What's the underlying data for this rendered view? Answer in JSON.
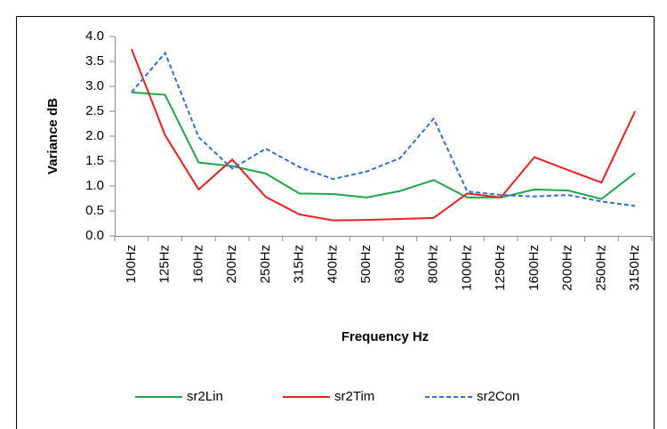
{
  "chart_data": {
    "type": "line",
    "x_label": "Frequency Hz",
    "y_label": "Variance dB",
    "categories": [
      "100Hz",
      "125Hz",
      "160Hz",
      "200Hz",
      "250Hz",
      "315Hz",
      "400Hz",
      "500Hz",
      "630Hz",
      "800Hz",
      "1000Hz",
      "1250Hz",
      "1600Hz",
      "2000Hz",
      "2500Hz",
      "3150Hz"
    ],
    "series": [
      {
        "name": "sr2Lin",
        "color": "#1fa64a",
        "dashed": false,
        "values": [
          2.88,
          2.83,
          1.47,
          1.4,
          1.25,
          0.85,
          0.84,
          0.77,
          0.9,
          1.12,
          0.77,
          0.77,
          0.93,
          0.91,
          0.74,
          1.26
        ]
      },
      {
        "name": "sr2Tim",
        "color": "#e8201f",
        "dashed": false,
        "values": [
          3.75,
          2.02,
          0.93,
          1.53,
          0.78,
          0.43,
          0.31,
          0.32,
          0.34,
          0.36,
          0.85,
          0.77,
          1.58,
          1.32,
          1.07,
          2.5
        ]
      },
      {
        "name": "sr2Con",
        "color": "#2e6fdc",
        "dashed": true,
        "values": [
          2.88,
          3.67,
          1.98,
          1.35,
          1.75,
          1.38,
          1.14,
          1.29,
          1.56,
          2.35,
          0.89,
          0.82,
          0.79,
          0.82,
          0.69,
          0.6
        ]
      }
    ],
    "ylim": [
      0,
      4
    ],
    "yticks": [
      {
        "value": 0,
        "label": "0.0"
      },
      {
        "value": 0.5,
        "label": "0.5"
      },
      {
        "value": 1,
        "label": "1.0"
      },
      {
        "value": 1.5,
        "label": "1.5"
      },
      {
        "value": 2,
        "label": "2.0"
      },
      {
        "value": 2.5,
        "label": "2.5"
      },
      {
        "value": 3,
        "label": "3.0"
      },
      {
        "value": 3.5,
        "label": "3.5"
      },
      {
        "value": 4,
        "label": "4.0"
      }
    ],
    "grid": false,
    "legend": "bottom"
  }
}
